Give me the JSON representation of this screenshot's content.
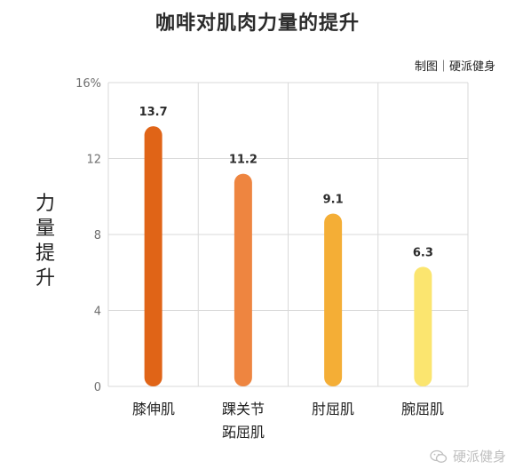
{
  "chart_data": {
    "type": "bar",
    "title": "咖啡对肌肉力量的提升",
    "credit": "制图｜硬派健身",
    "ylabel": "力量提升",
    "categories": [
      "膝伸肌",
      "踝关节跖屈肌",
      "肘屈肌",
      "腕屈肌"
    ],
    "category_lines": [
      [
        "膝伸肌"
      ],
      [
        "踝关节",
        "跖屈肌"
      ],
      [
        "肘屈肌"
      ],
      [
        "腕屈肌"
      ]
    ],
    "values": [
      13.7,
      11.2,
      9.1,
      6.3
    ],
    "value_labels": [
      "13.7",
      "11.2",
      "9.1",
      "6.3"
    ],
    "ylim": [
      0,
      16
    ],
    "yticks": [
      0,
      4,
      8,
      12,
      16
    ],
    "ytick_labels": [
      "0",
      "4",
      "8",
      "12",
      "16%"
    ],
    "grid": true,
    "colors": [
      "#e06417",
      "#ee8540",
      "#f4ae36",
      "#fbe56f"
    ]
  },
  "watermark": {
    "text": "硬派健身",
    "icon": "wechat-icon"
  }
}
